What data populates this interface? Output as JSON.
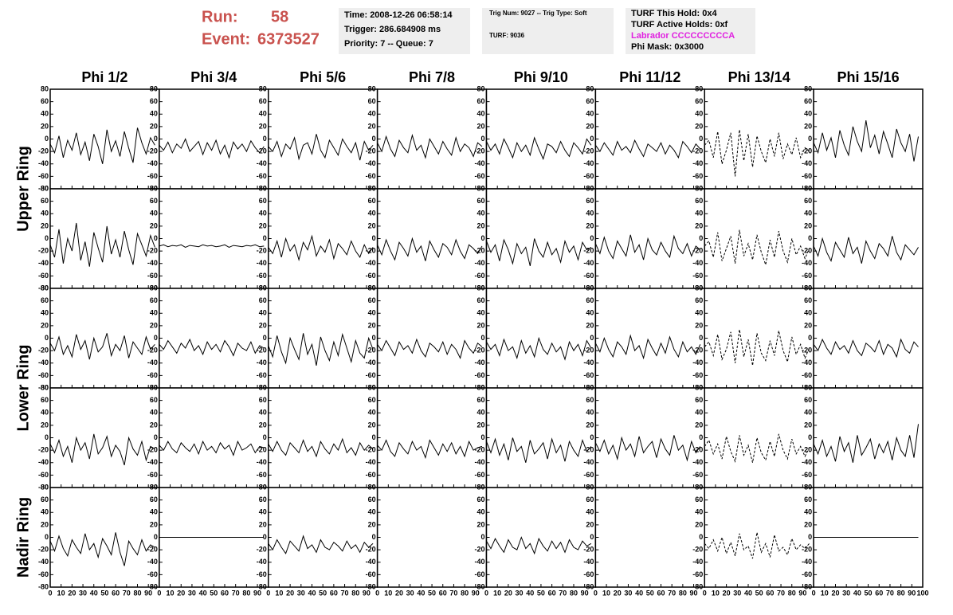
{
  "header": {
    "run_label": "Run:",
    "run": "58",
    "event_label": "Event:",
    "event": "6373527",
    "boxes": [
      [
        "Time: 2008-12-26 06:58:14",
        "Trigger: 286.684908 ms",
        "Priority: 7 -- Queue: 7"
      ],
      [
        "Trig Num: 9027 -- Trig Type: Soft",
        "TURF: 9036"
      ],
      [
        "TURF This Hold: 0x4",
        "TURF Active Holds: 0xf",
        "Labrador CCCCCCCCCA",
        "Phi Mask: 0x3000"
      ]
    ]
  },
  "chart_data": {
    "type": "line",
    "columns": [
      "Phi 1/2",
      "Phi 3/4",
      "Phi 5/6",
      "Phi 7/8",
      "Phi 9/10",
      "Phi 11/12",
      "Phi 13/14",
      "Phi 15/16"
    ],
    "row_labels": [
      "Upper Ring",
      "Lower Ring",
      "Nadir Ring"
    ],
    "xlim": [
      0,
      100
    ],
    "xticks": [
      0,
      10,
      20,
      30,
      40,
      50,
      60,
      70,
      80,
      90,
      100
    ],
    "ylim": [
      -80,
      80
    ],
    "yticks": [
      -80,
      -60,
      -40,
      -20,
      0,
      20,
      40,
      60,
      80
    ],
    "color": "#000000",
    "x": [
      0,
      4,
      8,
      12,
      16,
      20,
      24,
      28,
      32,
      36,
      40,
      44,
      48,
      52,
      56,
      60,
      64,
      68,
      72,
      76,
      80,
      84,
      88,
      92,
      96
    ],
    "grid": [
      [
        {
          "values": [
            -8,
            -22,
            5,
            -30,
            -2,
            -18,
            10,
            -25,
            -5,
            -35,
            8,
            -12,
            -40,
            15,
            -20,
            -3,
            -28,
            12,
            -15,
            -38,
            18,
            -6,
            -24,
            2,
            -10
          ]
        },
        {
          "values": [
            -10,
            -18,
            -5,
            -22,
            -8,
            -15,
            0,
            -20,
            -12,
            -4,
            -25,
            -6,
            -18,
            -2,
            -24,
            -10,
            -30,
            -5,
            -16,
            -8,
            -20,
            -3,
            -14,
            -22,
            -12
          ]
        },
        {
          "values": [
            -12,
            -20,
            -4,
            -28,
            -8,
            -16,
            2,
            -32,
            -10,
            -6,
            -24,
            8,
            -18,
            -30,
            -2,
            -14,
            -26,
            0,
            -12,
            -22,
            -6,
            -34,
            -4,
            -18,
            -10
          ]
        },
        {
          "values": [
            -6,
            -20,
            4,
            -16,
            -28,
            -2,
            -14,
            -22,
            6,
            -18,
            -10,
            -30,
            0,
            -12,
            -24,
            -4,
            -16,
            -26,
            2,
            -20,
            -8,
            -14,
            -28,
            -6,
            -12
          ]
        },
        {
          "values": [
            -4,
            -18,
            -8,
            -24,
            0,
            -14,
            -30,
            -6,
            -20,
            -10,
            -26,
            2,
            -16,
            -32,
            -8,
            -12,
            -22,
            -4,
            -18,
            -28,
            -6,
            -14,
            -24,
            0,
            -10
          ]
        },
        {
          "values": [
            -10,
            -20,
            -6,
            -16,
            -26,
            -4,
            -18,
            -12,
            -22,
            -2,
            -16,
            -28,
            -8,
            -14,
            -20,
            -6,
            -24,
            -10,
            -18,
            -30,
            -4,
            -12,
            -22,
            -8,
            -16
          ]
        },
        {
          "values": [
            -10,
            -2,
            -30,
            12,
            -40,
            -18,
            10,
            -60,
            15,
            -35,
            8,
            -45,
            5,
            -20,
            -38,
            0,
            -28,
            10,
            -32,
            -8,
            -25,
            2,
            -30,
            -14,
            -20
          ],
          "dashed": true
        },
        {
          "values": [
            -6,
            -22,
            10,
            -18,
            2,
            -30,
            14,
            -10,
            -26,
            20,
            -4,
            -20,
            30,
            -14,
            6,
            -24,
            12,
            -8,
            -30,
            16,
            -6,
            -20,
            8,
            -36,
            4
          ]
        }
      ],
      [
        {
          "values": [
            -10,
            -30,
            15,
            -40,
            0,
            -20,
            25,
            -35,
            -5,
            -45,
            10,
            -15,
            -38,
            20,
            -25,
            -2,
            -30,
            12,
            -18,
            -42,
            8,
            -10,
            -28,
            5,
            -14
          ]
        },
        {
          "values": [
            -12,
            -10,
            -13,
            -11,
            -12,
            -10,
            -14,
            -11,
            -12,
            -13,
            -10,
            -12,
            -11,
            -13,
            -12,
            -10,
            -14,
            -11,
            -12,
            -13,
            -11,
            -12,
            -10,
            -13,
            -12
          ]
        },
        {
          "values": [
            -14,
            -24,
            -4,
            -30,
            0,
            -20,
            -10,
            -34,
            -6,
            -18,
            4,
            -28,
            -12,
            -22,
            -2,
            -32,
            -8,
            -16,
            -26,
            -4,
            -20,
            -30,
            -10,
            -24,
            -14
          ]
        },
        {
          "values": [
            -10,
            -26,
            -2,
            -20,
            -34,
            -6,
            -16,
            -28,
            0,
            -22,
            -12,
            -36,
            -4,
            -18,
            -30,
            -8,
            -14,
            -26,
            -2,
            -20,
            -32,
            -10,
            -16,
            -24,
            -12
          ]
        },
        {
          "values": [
            -4,
            -22,
            -10,
            -36,
            -2,
            -18,
            -40,
            -8,
            -24,
            -14,
            -44,
            0,
            -20,
            -30,
            -6,
            -26,
            -16,
            -38,
            -4,
            -22,
            -12,
            -34,
            -6,
            -18,
            -14
          ]
        },
        {
          "values": [
            -8,
            -24,
            2,
            -20,
            -32,
            -4,
            -16,
            -28,
            6,
            -22,
            -10,
            -34,
            0,
            -18,
            -26,
            -6,
            -20,
            -30,
            4,
            -16,
            -24,
            -8,
            -28,
            -12,
            -18
          ]
        },
        {
          "values": [
            -12,
            -4,
            -30,
            10,
            -36,
            -16,
            4,
            -40,
            14,
            -28,
            -8,
            -34,
            6,
            -22,
            -42,
            -2,
            -30,
            12,
            -20,
            -38,
            0,
            -26,
            -12,
            -32,
            -16
          ],
          "dashed": true
        },
        {
          "values": [
            -12,
            -28,
            0,
            -22,
            -36,
            -6,
            -18,
            -30,
            2,
            -24,
            -14,
            -40,
            -4,
            -20,
            -32,
            -8,
            -16,
            -28,
            4,
            -22,
            -34,
            -10,
            -18,
            -26,
            -14
          ]
        }
      ],
      [
        {
          "values": [
            -8,
            -20,
            2,
            -26,
            -12,
            -30,
            6,
            -18,
            -4,
            -34,
            0,
            -22,
            -14,
            8,
            -28,
            -10,
            -20,
            4,
            -32,
            -6,
            -16,
            -26,
            2,
            -18,
            -10
          ]
        },
        {
          "values": [
            -10,
            -18,
            -4,
            -14,
            -24,
            -8,
            -16,
            -2,
            -20,
            -12,
            -26,
            -6,
            -18,
            -10,
            -22,
            -4,
            -14,
            -28,
            -8,
            -16,
            -20,
            -6,
            -24,
            -12,
            -16
          ]
        },
        {
          "values": [
            -12,
            -30,
            4,
            -22,
            -40,
            0,
            -18,
            -34,
            8,
            -26,
            -10,
            -44,
            2,
            -20,
            -36,
            -6,
            -28,
            6,
            -16,
            -38,
            -4,
            -24,
            -32,
            0,
            -18
          ]
        },
        {
          "values": [
            -10,
            -20,
            -4,
            -16,
            -28,
            -6,
            -18,
            -12,
            -24,
            -2,
            -20,
            -30,
            -8,
            -14,
            -22,
            -6,
            -26,
            -10,
            -18,
            -32,
            -4,
            -16,
            -24,
            -8,
            -14
          ]
        },
        {
          "values": [
            -6,
            -18,
            -10,
            -28,
            -2,
            -20,
            -14,
            -32,
            -4,
            -24,
            -12,
            -30,
            0,
            -18,
            -26,
            -8,
            -22,
            -14,
            -34,
            -6,
            -20,
            -10,
            -28,
            -4,
            -16
          ]
        },
        {
          "values": [
            -8,
            -22,
            0,
            -18,
            -30,
            -6,
            -14,
            -26,
            4,
            -20,
            -12,
            -32,
            -2,
            -16,
            -28,
            -8,
            -24,
            2,
            -18,
            -30,
            -6,
            -22,
            -14,
            -26,
            -10
          ]
        },
        {
          "values": [
            -14,
            -6,
            -28,
            6,
            -34,
            -18,
            10,
            -40,
            14,
            -30,
            -2,
            -44,
            8,
            -24,
            -36,
            -4,
            -28,
            12,
            -20,
            -38,
            2,
            -26,
            -10,
            -32,
            -16
          ],
          "dashed": true
        },
        {
          "values": [
            -10,
            -20,
            -2,
            -16,
            -26,
            -6,
            -18,
            -12,
            -24,
            -4,
            -20,
            -28,
            -8,
            -14,
            -22,
            -4,
            -26,
            -10,
            -16,
            -30,
            -2,
            -18,
            -24,
            -6,
            -14
          ]
        }
      ],
      [
        {
          "values": [
            -10,
            -24,
            -4,
            -30,
            -14,
            -40,
            0,
            -20,
            -8,
            -34,
            6,
            -26,
            -16,
            2,
            -30,
            -12,
            -22,
            -44,
            0,
            -18,
            -28,
            -6,
            -36,
            -14,
            -18
          ]
        },
        {
          "values": [
            -12,
            -20,
            -6,
            -18,
            -24,
            -8,
            -16,
            -22,
            -10,
            -26,
            -6,
            -20,
            -14,
            -24,
            -8,
            -18,
            -12,
            -28,
            -6,
            -20,
            -16,
            -10,
            -24,
            -14,
            -16
          ]
        },
        {
          "values": [
            -10,
            -22,
            -6,
            -20,
            -28,
            -8,
            -16,
            -24,
            -4,
            -22,
            -14,
            -30,
            -6,
            -18,
            -26,
            -10,
            -20,
            -2,
            -24,
            -16,
            -28,
            -8,
            -20,
            -12,
            -18
          ]
        },
        {
          "values": [
            -12,
            -20,
            -4,
            -22,
            -30,
            -8,
            -18,
            -26,
            -6,
            -20,
            -14,
            -32,
            -4,
            -16,
            -28,
            -10,
            -22,
            -8,
            -26,
            -14,
            -30,
            -6,
            -20,
            -16,
            -14
          ]
        },
        {
          "values": [
            -6,
            -24,
            -2,
            -28,
            -10,
            -36,
            0,
            -22,
            -14,
            -40,
            -4,
            -26,
            -18,
            -8,
            -34,
            -2,
            -24,
            -12,
            -38,
            -6,
            -20,
            -30,
            -4,
            -22,
            -14
          ]
        },
        {
          "values": [
            -8,
            -22,
            -4,
            -26,
            -12,
            -34,
            0,
            -20,
            -10,
            -30,
            2,
            -24,
            -14,
            -6,
            -32,
            -2,
            -18,
            -28,
            4,
            -20,
            -12,
            -36,
            -6,
            -24,
            -14
          ]
        },
        {
          "values": [
            -14,
            -4,
            -26,
            -10,
            -34,
            2,
            -22,
            -38,
            4,
            -28,
            -12,
            -40,
            0,
            -24,
            -36,
            -6,
            -30,
            6,
            -20,
            -34,
            -2,
            -26,
            -14,
            -30,
            -16
          ],
          "dashed": true
        },
        {
          "values": [
            -10,
            -26,
            -4,
            -30,
            -14,
            -38,
            2,
            -22,
            -8,
            -40,
            4,
            -28,
            -16,
            -2,
            -34,
            -10,
            -24,
            -6,
            -36,
            0,
            -20,
            -30,
            4,
            -32,
            22
          ]
        }
      ],
      [
        {
          "values": [
            -6,
            -22,
            2,
            -18,
            -30,
            -4,
            -16,
            -26,
            6,
            -20,
            -10,
            -32,
            -2,
            -14,
            -28,
            8,
            -24,
            -46,
            -6,
            -18,
            -28,
            -4,
            -22,
            -12,
            -16
          ]
        },
        {
          "values": [
            0,
            0,
            0,
            0,
            0,
            0,
            0,
            0,
            0,
            0,
            0,
            0,
            0,
            0,
            0,
            0,
            0,
            0,
            0,
            0,
            0,
            0,
            0,
            0,
            0
          ]
        },
        {
          "values": [
            -10,
            -20,
            -4,
            -16,
            -26,
            -6,
            -14,
            -22,
            2,
            -18,
            -12,
            -24,
            -4,
            -16,
            -20,
            -8,
            -14,
            -22,
            -6,
            -18,
            -12,
            -24,
            -8,
            -16,
            -10
          ]
        },
        null,
        {
          "values": [
            -6,
            -18,
            -2,
            -14,
            -24,
            -4,
            -16,
            -20,
            0,
            -18,
            -10,
            -26,
            -2,
            -14,
            -22,
            -6,
            -18,
            -8,
            -24,
            -4,
            -16,
            -20,
            -6,
            -14,
            -10
          ]
        },
        null,
        {
          "values": [
            -10,
            -18,
            -4,
            -22,
            0,
            -26,
            -8,
            -30,
            6,
            -20,
            -14,
            -34,
            8,
            -24,
            -10,
            -32,
            4,
            -22,
            -16,
            -28,
            -2,
            -20,
            -12,
            -18,
            -10
          ],
          "dashed": true
        },
        {
          "values": [
            0,
            0,
            0,
            0,
            0,
            0,
            0,
            0,
            0,
            0,
            0,
            0,
            0,
            0,
            0,
            0,
            0,
            0,
            0,
            0,
            0,
            0,
            0,
            0,
            0
          ]
        }
      ]
    ]
  }
}
